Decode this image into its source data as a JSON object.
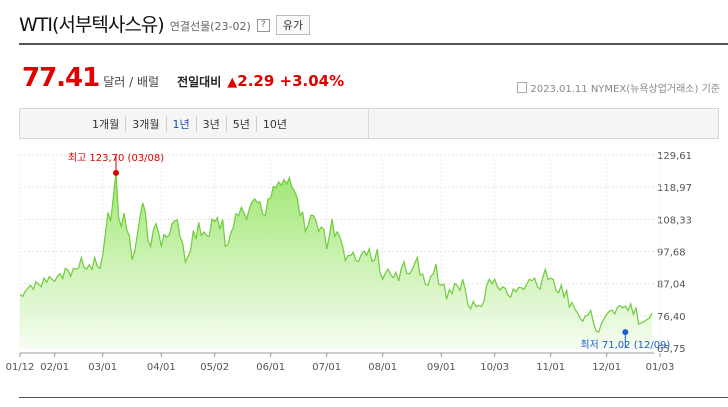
{
  "header": {
    "title": "WTI(서부텍사스유)",
    "subtitle": "연결선물(23-02)",
    "help_label": "?",
    "type_button": "유가"
  },
  "quote": {
    "price": "77.41",
    "unit": "달러 / 배럴",
    "compare_label": "전일대비",
    "change_arrow": "▲",
    "change": "2.29",
    "change_pct": "+3.04%",
    "meta": "2023.01.11  NYMEX(뉴욕상업거래소) 기준"
  },
  "tabs": [
    {
      "label": "1개월",
      "active": false
    },
    {
      "label": "3개월",
      "active": false
    },
    {
      "label": "1년",
      "active": true
    },
    {
      "label": "3년",
      "active": false
    },
    {
      "label": "5년",
      "active": false
    },
    {
      "label": "10년",
      "active": false
    }
  ],
  "chart_data": {
    "type": "area",
    "colors": {
      "line": "#6fcc3a",
      "fill_top": "#9ae66a",
      "fill_bottom": "#f4fcee",
      "high": "#e00000",
      "low": "#1a5fd0"
    },
    "ylim": [
      65.75,
      129.61
    ],
    "y_ticks": [
      "129,61",
      "118,97",
      "108,33",
      "97,68",
      "87,04",
      "76,40",
      "65,75"
    ],
    "x_tick_labels": [
      "01/12",
      "02/01",
      "03/01",
      "04/01",
      "05/02",
      "06/01",
      "07/01",
      "08/01",
      "09/01",
      "10/03",
      "11/01",
      "12/01",
      "01/03"
    ],
    "x_tick_index": [
      0,
      13,
      31,
      53,
      73,
      94,
      115,
      136,
      158,
      178,
      199,
      220,
      240
    ],
    "high": {
      "label": "최고 123,70 (03/08)",
      "index": 36,
      "value": 123.7
    },
    "low": {
      "label": "최저 71,02 (12/09)",
      "index": 227,
      "value": 71.02
    },
    "values": [
      83.5,
      82.8,
      84.6,
      85.6,
      86.5,
      85.2,
      87.7,
      86.8,
      86.0,
      88.9,
      87.5,
      89.4,
      88.5,
      87.8,
      89.4,
      90.3,
      88.7,
      92.1,
      91.5,
      89.4,
      92.1,
      91.8,
      92.3,
      95.7,
      92.4,
      91.9,
      93.3,
      91.7,
      95.7,
      92.8,
      92.1,
      96.4,
      103.4,
      110.6,
      107.7,
      115.7,
      123.7,
      108.7,
      106.0,
      110.4,
      104.8,
      102.9,
      95.0,
      97.7,
      103.2,
      109.2,
      113.8,
      110.8,
      101.3,
      99.4,
      104.8,
      106.9,
      103.9,
      99.3,
      103.3,
      102.4,
      103.2,
      106.8,
      107.8,
      108.2,
      102.6,
      100.5,
      94.2,
      96.1,
      98.1,
      104.6,
      101.8,
      107.3,
      103.0,
      104.1,
      103.0,
      102.8,
      108.4,
      107.6,
      108.9,
      105.0,
      108.3,
      99.4,
      100.0,
      103.6,
      105.7,
      110.2,
      109.6,
      112.3,
      110.5,
      108.4,
      111.8,
      114.1,
      115.1,
      113.9,
      114.1,
      110.1,
      109.6,
      115.1,
      115.3,
      119.2,
      118.8,
      120.7,
      119.6,
      121.5,
      120.0,
      122.1,
      118.9,
      117.6,
      115.3,
      109.6,
      110.7,
      104.3,
      106.2,
      109.6,
      109.6,
      107.8,
      104.3,
      105.8,
      104.9,
      98.5,
      102.7,
      108.4,
      102.7,
      104.2,
      102.3,
      99.4,
      94.7,
      96.3,
      96.4,
      97.4,
      94.7,
      94.4,
      96.8,
      97.9,
      96.4,
      98.6,
      94.4,
      94.9,
      98.5,
      90.7,
      88.5,
      90.5,
      91.9,
      90.0,
      89.0,
      90.8,
      87.9,
      92.1,
      94.3,
      90.5,
      90.3,
      91.5,
      93.7,
      95.7,
      89.9,
      90.2,
      86.9,
      86.5,
      89.4,
      90.4,
      93.5,
      86.9,
      86.5,
      86.9,
      81.9,
      85.1,
      83.8,
      87.1,
      86.4,
      84.9,
      88.5,
      84.9,
      79.9,
      78.7,
      81.2,
      79.4,
      79.9,
      79.5,
      81.2,
      86.5,
      88.5,
      87.0,
      88.5,
      86.1,
      84.9,
      86.0,
      85.5,
      83.2,
      82.6,
      85.3,
      84.4,
      85.8,
      85.7,
      85.1,
      86.8,
      88.5,
      88.0,
      88.9,
      86.1,
      85.2,
      89.0,
      91.8,
      88.4,
      88.9,
      88.4,
      84.8,
      84.0,
      86.6,
      82.6,
      84.8,
      79.2,
      80.8,
      78.7,
      77.5,
      75.6,
      74.6,
      76.4,
      76.6,
      78.2,
      74.3,
      71.5,
      71.0,
      73.7,
      75.4,
      76.8,
      77.9,
      78.3,
      77.0,
      79.2,
      79.8,
      79.0,
      79.6,
      78.1,
      80.4,
      76.9,
      79.0,
      73.7,
      74.1,
      74.4,
      75.1,
      75.6,
      77.4
    ]
  }
}
